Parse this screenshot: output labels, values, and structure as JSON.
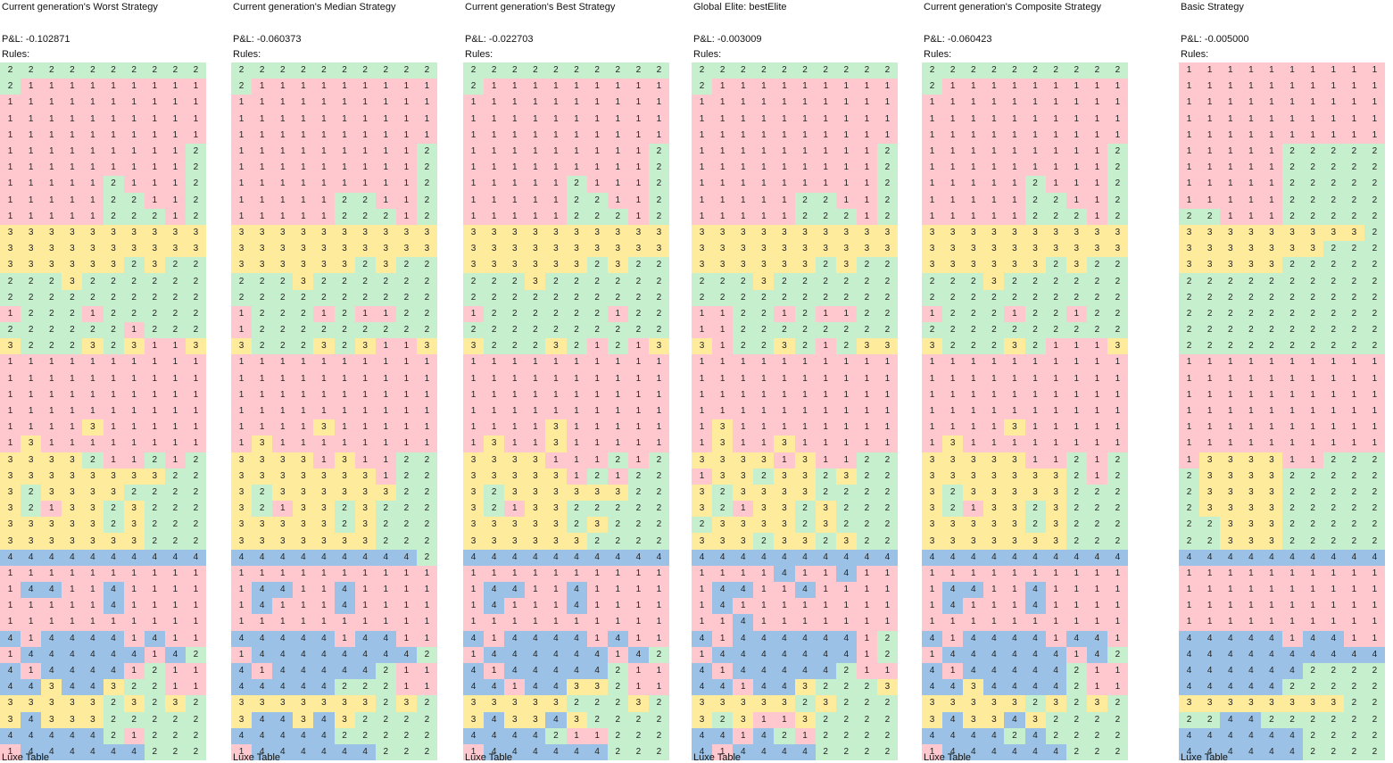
{
  "palette": {
    "1": "#ffc7ce",
    "2": "#c6efce",
    "3": "#ffeb9c",
    "4": "#9bc2e6"
  },
  "panels": [
    {
      "title": "Current generation's Worst Strategy",
      "pnl": "P&L: -0.102871",
      "rules_label": "Rules:",
      "rows": [
        "2222222222",
        "2111111111",
        "1111111111",
        "1111111111",
        "1111111111",
        "1111111112",
        "1111111112",
        "1111121112",
        "1111122112",
        "1111122212",
        "3333333333",
        "3333333333",
        "3333332322",
        "2223222222",
        "2222222222",
        "1222122222",
        "2222221222",
        "3222323113",
        "1111111111",
        "1111111111",
        "1111111111",
        "1111111111",
        "1111311111",
        "1311111111",
        "3333211212",
        "3333333322",
        "3233332222",
        "3213323222",
        "3333323222",
        "3333333222",
        "4444444444",
        "1111111111",
        "1441141111",
        "1111141111",
        "1111111111",
        "4144441411",
        "1444444142",
        "4144441211",
        "4434432211",
        "3333323232",
        "3433322222",
        "4444421222",
        "1444444222"
      ],
      "footer": "Luxe Table"
    },
    {
      "title": "Current generation's Median Strategy",
      "pnl": "P&L: -0.060373",
      "rules_label": "Rules:",
      "rows": [
        "2222222222",
        "2111111111",
        "1111111111",
        "1111111111",
        "1111111111",
        "1111111112",
        "1111111112",
        "1111111112",
        "1111122112",
        "1111122212",
        "3333333333",
        "3333333333",
        "3333332322",
        "2223222222",
        "2222222222",
        "1222121122",
        "1222222222",
        "3222323113",
        "1111111111",
        "1111111111",
        "1111111111",
        "1111111111",
        "1111311111",
        "1311111111",
        "3333131122",
        "3333333122",
        "3233333322",
        "3213323222",
        "3333323222",
        "3333333222",
        "4444444442",
        "1111111111",
        "1441141111",
        "1411141111",
        "1111111111",
        "4444414411",
        "1444444442",
        "4144444211",
        "4444422211",
        "3333333232",
        "3443432222",
        "4444422222",
        "1444444222"
      ],
      "footer": "Luxe Table"
    },
    {
      "title": "Current generation's Best Strategy",
      "pnl": "P&L: -0.022703",
      "rules_label": "Rules:",
      "rows": [
        "2222222222",
        "2111111111",
        "1111111111",
        "1111111111",
        "1111111111",
        "1111111112",
        "1111111112",
        "1111121112",
        "1111122112",
        "1111122212",
        "3333333333",
        "3333333333",
        "3333332322",
        "2223222222",
        "2222222222",
        "1222222122",
        "2222222222",
        "3222321213",
        "1111111111",
        "1111111111",
        "1111111111",
        "1111111111",
        "1111311111",
        "1311311111",
        "3333111212",
        "3333312122",
        "3233333322",
        "3213322222",
        "3333323222",
        "3333332222",
        "4444444444",
        "1111111111",
        "1441141111",
        "1411141111",
        "1111111111",
        "4144441411",
        "1444444142",
        "4144444211",
        "4414433211",
        "3333322232",
        "3433432222",
        "4444211222",
        "1444444222"
      ],
      "footer": "Luxe Table"
    },
    {
      "title": "Global Elite: bestElite",
      "pnl": "P&L: -0.003009",
      "rules_label": "Rules:",
      "rows": [
        "2222222222",
        "2111111111",
        "1111111111",
        "1111111111",
        "1111111111",
        "1111111112",
        "1111111112",
        "1111111112",
        "1111122112",
        "1111122212",
        "3333333333",
        "3333333333",
        "3333332322",
        "2223222222",
        "2222222222",
        "1122121122",
        "1122222222",
        "3122321233",
        "1111111111",
        "1111111111",
        "1111111111",
        "1111111111",
        "1311111111",
        "1311311111",
        "3333131122",
        "1332332322",
        "3233332222",
        "3213323222",
        "2333323222",
        "3332332322",
        "4444444444",
        "1111411411",
        "1441141111",
        "1411111111",
        "1141111111",
        "4144444412",
        "1444444412",
        "4144444211",
        "4414432223",
        "3333323222",
        "3231132222",
        "4414212222",
        "4144442222"
      ],
      "footer": "Luxe Table"
    },
    {
      "title": "Current generation's Composite Strategy",
      "pnl": "P&L: -0.060423",
      "rules_label": "Rules:",
      "rows": [
        "2222222222",
        "2111111111",
        "1111111111",
        "1111111111",
        "1111111111",
        "1111111112",
        "1111111112",
        "1111121112",
        "1111122112",
        "1111122212",
        "3333333333",
        "3333333333",
        "3333332322",
        "2223222222",
        "2222222222",
        "1222122122",
        "2222222222",
        "3222321113",
        "1111111111",
        "1111111111",
        "1111111111",
        "1111111111",
        "1111311111",
        "1311111111",
        "3333311212",
        "3333333212",
        "3233333222",
        "3213323222",
        "3333323222",
        "3333333222",
        "4444444444",
        "1111111111",
        "1441141111",
        "1411141111",
        "1111111111",
        "4144441441",
        "1444444142",
        "4144444211",
        "4434444211",
        "3333323232",
        "3433432222",
        "4444242222",
        "1444444222"
      ],
      "footer": "Luxe Table"
    },
    {
      "title": "Basic Strategy",
      "pnl": "P&L: -0.005000",
      "rules_label": "Rules:",
      "rows": [
        "1111111111",
        "1111111111",
        "1111111111",
        "1111111111",
        "1111111111",
        "1111122222",
        "1111122222",
        "1111122222",
        "1111122222",
        "2211122222",
        "3333333332",
        "3333333222",
        "3333322222",
        "2222222222",
        "2222222222",
        "2222222222",
        "2222222222",
        "2222222222",
        "1111111111",
        "1111111111",
        "1111111111",
        "1111111111",
        "1111111111",
        "1111111111",
        "1333311222",
        "2333322222",
        "2333322222",
        "2333322222",
        "2233322222",
        "2233322222",
        "4444444444",
        "1111111111",
        "1111111111",
        "1111111111",
        "1111111111",
        "4444414411",
        "4444444444",
        "4444442222",
        "4444422222",
        "3333333322",
        "2244222222",
        "4444442222",
        "4444442222"
      ],
      "footer": "Luxe Table"
    }
  ]
}
